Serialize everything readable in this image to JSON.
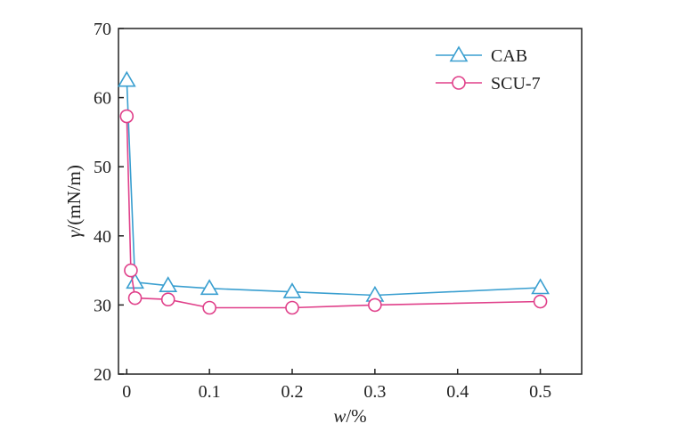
{
  "chart_data": {
    "type": "line",
    "title": "",
    "xlabel": {
      "symbol": "w",
      "unit": "/%"
    },
    "ylabel": {
      "symbol": "γ",
      "unit": "/(mN/m)"
    },
    "xlim": [
      -0.01,
      0.55
    ],
    "ylim": [
      20,
      70
    ],
    "x_ticks": [
      0,
      0.1,
      0.2,
      0.3,
      0.4,
      0.5
    ],
    "x_tick_labels": [
      "0",
      "0.1",
      "0.2",
      "0.3",
      "0.4",
      "0.5"
    ],
    "y_ticks": [
      20,
      30,
      40,
      50,
      60,
      70
    ],
    "y_tick_labels": [
      "20",
      "30",
      "40",
      "50",
      "60",
      "70"
    ],
    "grid": false,
    "legend_position": "top-right",
    "series": [
      {
        "name": "CAB",
        "marker": "triangle",
        "color": "#3a9fd0",
        "x": [
          0,
          0.01,
          0.05,
          0.1,
          0.2,
          0.3,
          0.5
        ],
        "y": [
          62.5,
          33.3,
          32.8,
          32.4,
          31.9,
          31.4,
          32.5
        ]
      },
      {
        "name": "SCU-7",
        "marker": "circle",
        "color": "#e0408a",
        "x": [
          0,
          0.005,
          0.01,
          0.05,
          0.1,
          0.2,
          0.3,
          0.5
        ],
        "y": [
          57.3,
          35.0,
          31.0,
          30.8,
          29.6,
          29.6,
          30.0,
          30.5
        ]
      }
    ]
  }
}
